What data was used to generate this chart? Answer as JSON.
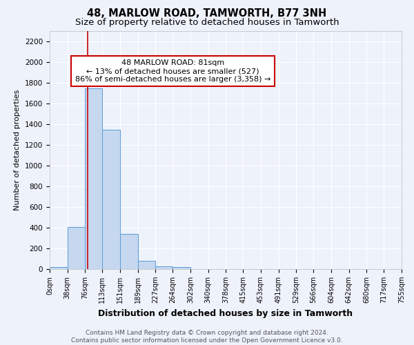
{
  "title": "48, MARLOW ROAD, TAMWORTH, B77 3NH",
  "subtitle": "Size of property relative to detached houses in Tamworth",
  "xlabel": "Distribution of detached houses by size in Tamworth",
  "ylabel": "Number of detached properties",
  "bin_edges": [
    0,
    38,
    76,
    113,
    151,
    189,
    227,
    264,
    302,
    340,
    378,
    415,
    453,
    491,
    529,
    566,
    604,
    642,
    680,
    717,
    755
  ],
  "bin_heights": [
    20,
    410,
    1750,
    1350,
    340,
    80,
    30,
    20,
    0,
    0,
    0,
    0,
    0,
    0,
    0,
    0,
    0,
    0,
    0,
    0
  ],
  "bar_facecolor": "#c5d8f0",
  "bar_edgecolor": "#5b9bd5",
  "red_line_x": 81,
  "red_line_color": "#cc0000",
  "annotation_text": "48 MARLOW ROAD: 81sqm\n← 13% of detached houses are smaller (527)\n86% of semi-detached houses are larger (3,358) →",
  "ylim": [
    0,
    2300
  ],
  "yticks": [
    0,
    200,
    400,
    600,
    800,
    1000,
    1200,
    1400,
    1600,
    1800,
    2000,
    2200
  ],
  "background_color": "#eef2fb",
  "grid_color": "#ffffff",
  "footer_text": "Contains HM Land Registry data © Crown copyright and database right 2024.\nContains public sector information licensed under the Open Government Licence v3.0.",
  "title_fontsize": 10.5,
  "subtitle_fontsize": 9.5,
  "ylabel_fontsize": 8,
  "xlabel_fontsize": 9,
  "annotation_fontsize": 8,
  "footer_fontsize": 6.5,
  "xtick_fontsize": 7,
  "ytick_fontsize": 7.5
}
